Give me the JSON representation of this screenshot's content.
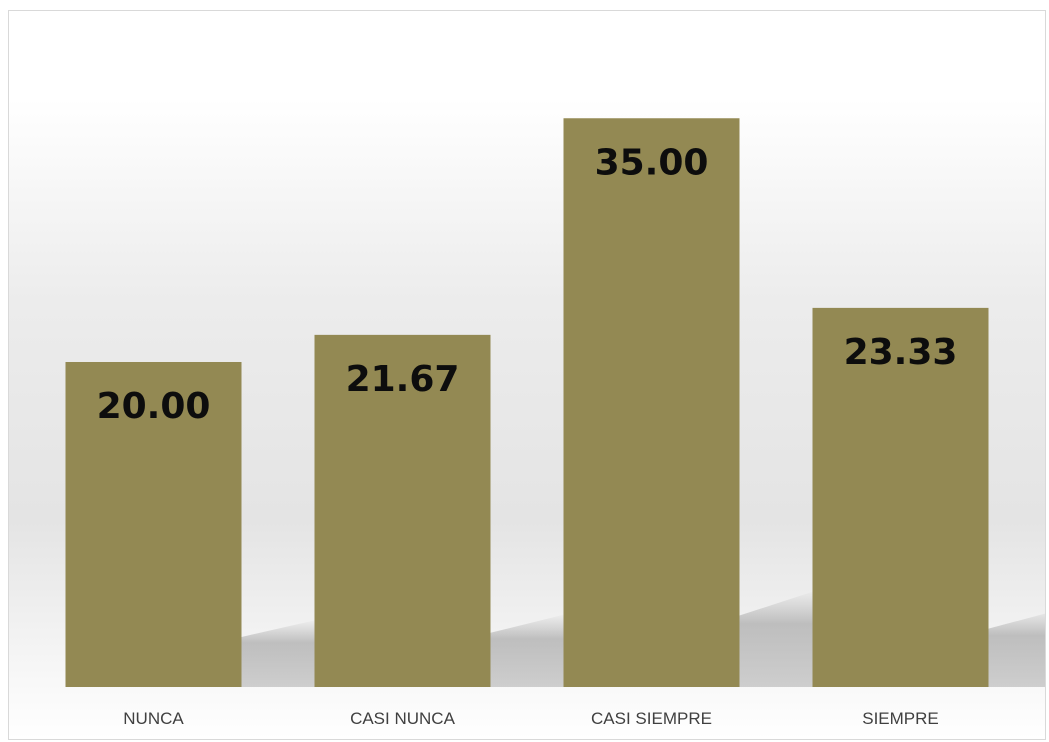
{
  "chart_data": {
    "type": "bar",
    "title": "",
    "xlabel": "",
    "ylabel": "",
    "categories": [
      "NUNCA",
      "CASI NUNCA",
      "CASI SIEMPRE",
      "SIEMPRE"
    ],
    "values": [
      20.0,
      21.67,
      35.0,
      23.33
    ],
    "value_labels": [
      "20.00",
      "21.67",
      "35.00",
      "23.33"
    ],
    "ylim": [
      0,
      40
    ],
    "grid": false,
    "legend": "none",
    "colors": {
      "bar": "#938953",
      "label_text": "#0d0d0d",
      "category_text": "#404040"
    }
  }
}
